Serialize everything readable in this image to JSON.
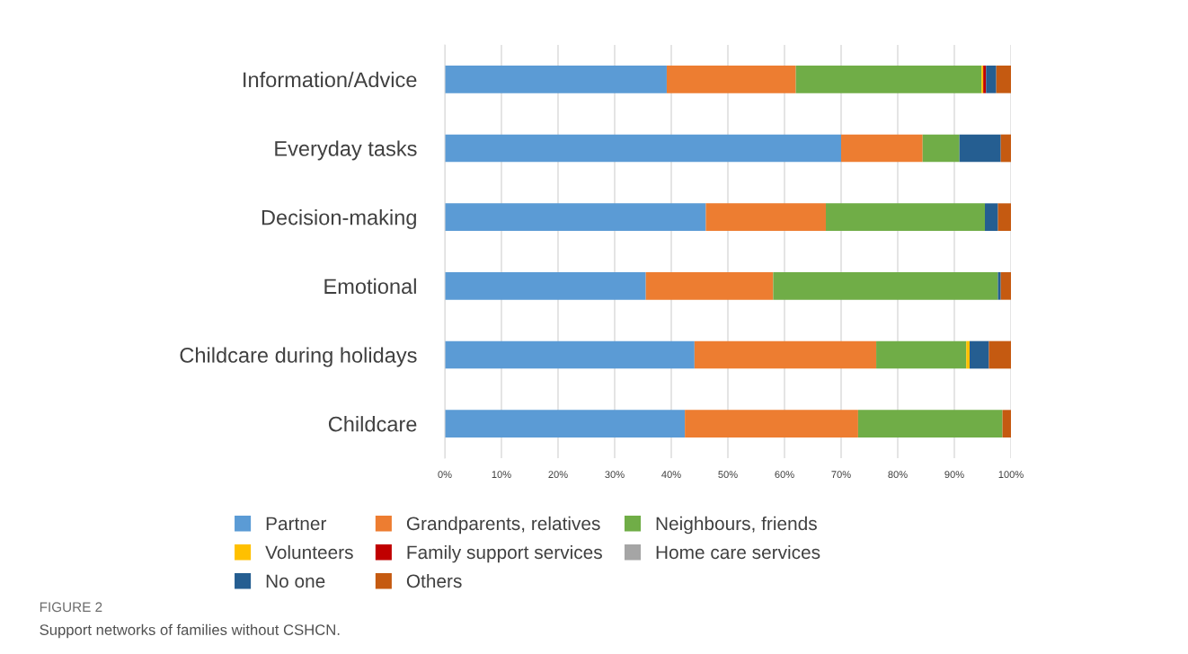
{
  "chart_data": {
    "type": "bar",
    "orientation": "horizontal",
    "stacked": true,
    "categories": [
      "Information/Advice",
      "Everyday tasks",
      "Decision-making",
      "Emotional",
      "Childcare during holidays",
      "Childcare"
    ],
    "series": [
      {
        "name": "Partner",
        "color": "#5b9bd5",
        "values": [
          39.2,
          70.0,
          46.1,
          35.5,
          44.1,
          42.4
        ]
      },
      {
        "name": "Grandparents, relatives",
        "color": "#ed7d31",
        "values": [
          22.8,
          14.4,
          21.2,
          22.5,
          32.1,
          30.6
        ]
      },
      {
        "name": "Neighbours, friends",
        "color": "#70ad47",
        "values": [
          32.8,
          6.5,
          28.1,
          39.7,
          15.9,
          25.5
        ]
      },
      {
        "name": "Volunteers",
        "color": "#ffc000",
        "values": [
          0.3,
          0,
          0,
          0,
          0.6,
          0
        ]
      },
      {
        "name": "Family support services",
        "color": "#c00000",
        "values": [
          0.5,
          0,
          0,
          0,
          0,
          0
        ]
      },
      {
        "name": "Home care services",
        "color": "#a5a5a5",
        "values": [
          0,
          0,
          0,
          0,
          0,
          0
        ]
      },
      {
        "name": "No one",
        "color": "#255e91",
        "values": [
          1.8,
          7.3,
          2.3,
          0.5,
          3.4,
          0
        ]
      },
      {
        "name": "Others",
        "color": "#c55a11",
        "values": [
          2.6,
          1.8,
          2.3,
          1.8,
          3.9,
          1.5
        ]
      }
    ],
    "xlim": [
      0,
      100
    ],
    "xticks": [
      {
        "value": 0,
        "label": "0%"
      },
      {
        "value": 10,
        "label": "10%"
      },
      {
        "value": 20,
        "label": "20%"
      },
      {
        "value": 30,
        "label": "30%"
      },
      {
        "value": 40,
        "label": "40%"
      },
      {
        "value": 50,
        "label": "50%"
      },
      {
        "value": 60,
        "label": "60%"
      },
      {
        "value": 70,
        "label": "70%"
      },
      {
        "value": 80,
        "label": "80%"
      },
      {
        "value": 90,
        "label": "90%"
      },
      {
        "value": 100,
        "label": "100%"
      }
    ],
    "grid": "x",
    "legend": "bottom",
    "annotations": [
      "FIGURE 2",
      "Support networks of families without CSHCN."
    ]
  }
}
